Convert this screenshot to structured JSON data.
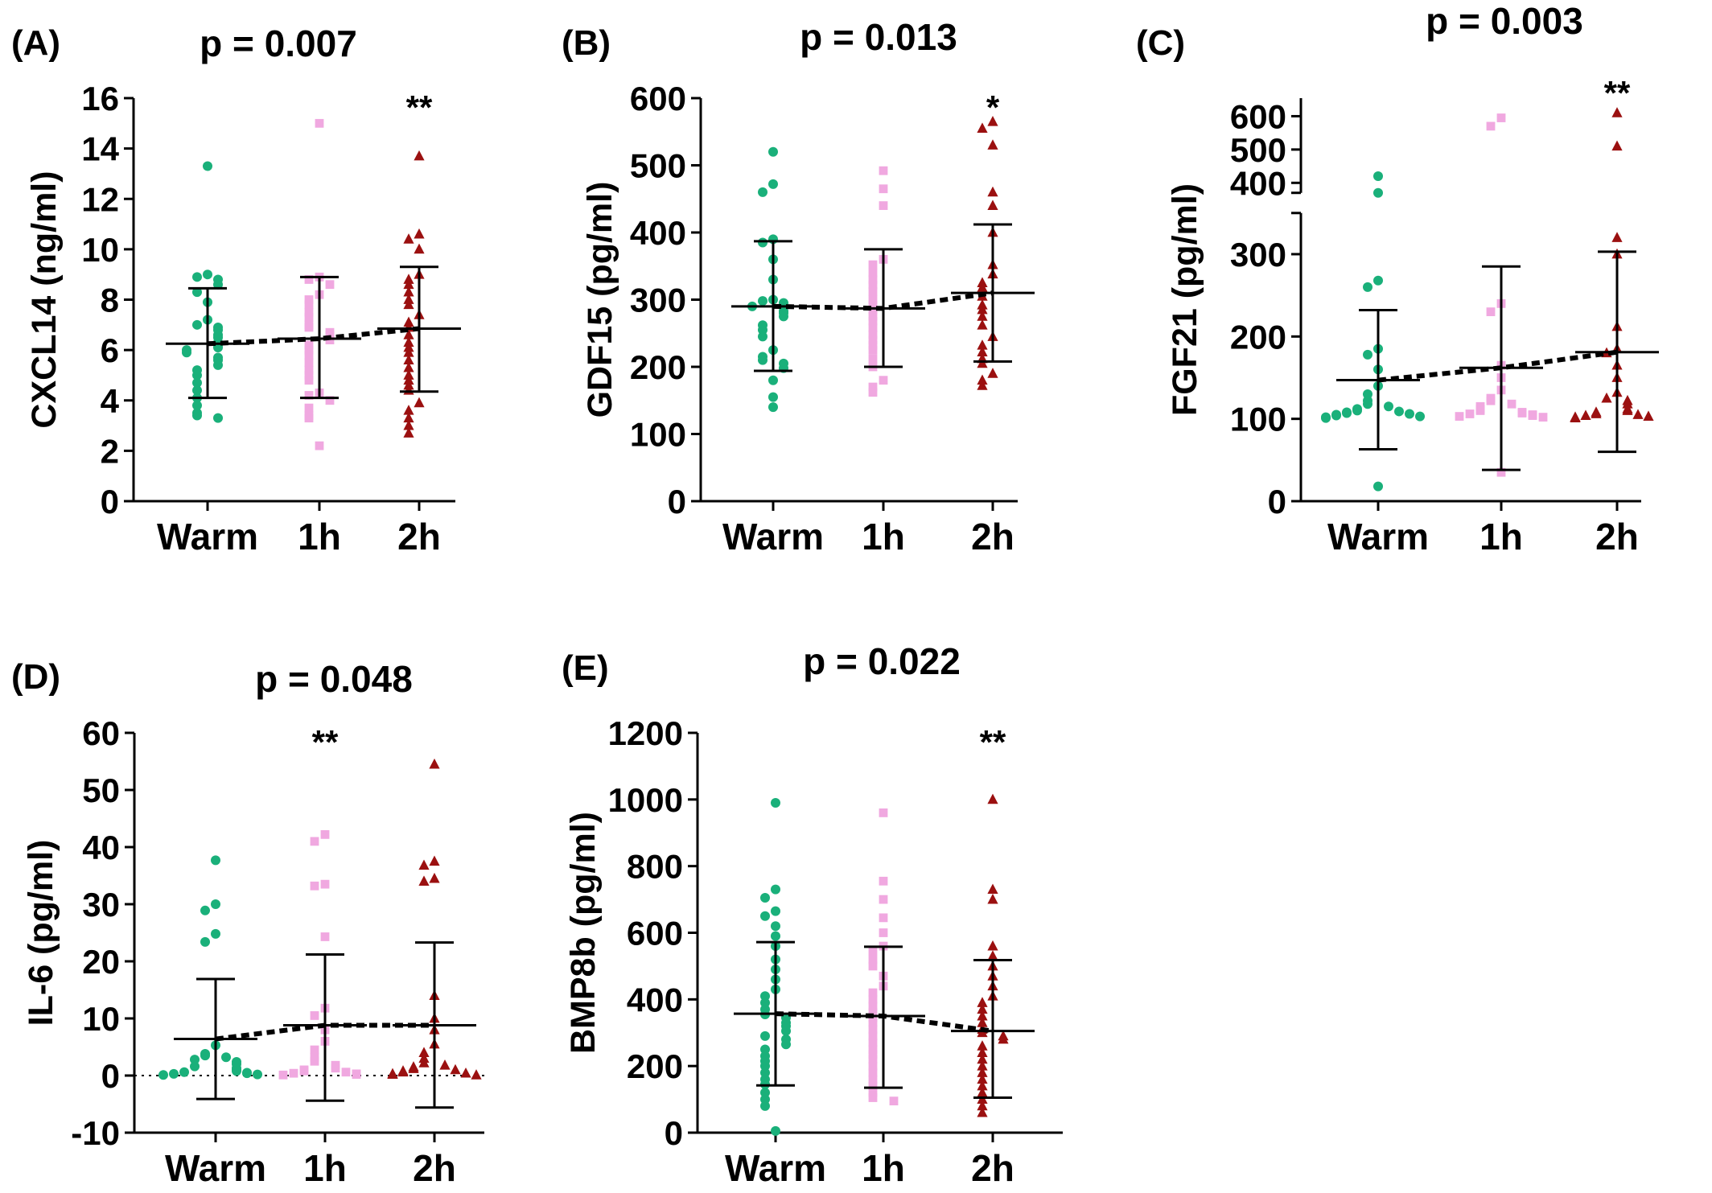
{
  "colors": {
    "Warm": "#1ab07a",
    "1h": "#f0a8e0",
    "2h": "#9b1010",
    "axis": "#000000"
  },
  "chart_data": [
    {
      "panel": "(A)",
      "type": "scatter",
      "p_text": "p = 0.007",
      "ylabel": "CXCL14 (ng/ml)",
      "categories": [
        "Warm",
        "1h",
        "2h"
      ],
      "yticks": [
        0,
        2,
        4,
        6,
        8,
        10,
        12,
        14,
        16
      ],
      "ylim": [
        0,
        16
      ],
      "significance": [
        {
          "category": "2h",
          "label": "**"
        }
      ],
      "means": [
        6.25,
        6.45,
        6.85
      ],
      "sd_upper": [
        8.45,
        8.9,
        9.3
      ],
      "sd_lower": [
        4.1,
        4.1,
        4.35
      ],
      "series": [
        {
          "category": "Warm",
          "marker": "circle",
          "values": [
            13.3,
            9.0,
            8.9,
            8.8,
            8.6,
            8.3,
            7.9,
            7.2,
            7.0,
            6.9,
            6.8,
            6.6,
            6.5,
            6.3,
            6.2,
            6.1,
            6.0,
            5.9,
            5.7,
            5.6,
            5.4,
            5.2,
            5.0,
            4.7,
            4.4,
            4.1,
            3.8,
            3.5,
            3.4,
            3.3
          ]
        },
        {
          "category": "1h",
          "marker": "square",
          "values": [
            15.0,
            8.9,
            8.8,
            8.6,
            8.2,
            8.0,
            7.8,
            7.5,
            7.3,
            7.0,
            6.9,
            6.7,
            6.6,
            6.4,
            6.2,
            6.0,
            5.8,
            5.5,
            5.2,
            5.0,
            4.8,
            4.3,
            4.2,
            4.0,
            3.7,
            3.4,
            3.3,
            2.2
          ]
        },
        {
          "category": "2h",
          "marker": "triangle",
          "values": [
            13.7,
            10.6,
            10.4,
            10.0,
            9.0,
            8.8,
            8.6,
            8.3,
            8.0,
            7.8,
            7.4,
            7.1,
            6.9,
            6.6,
            6.3,
            6.1,
            5.9,
            5.6,
            5.3,
            5.0,
            4.8,
            4.6,
            4.4,
            3.9,
            3.6,
            3.3,
            3.0,
            2.7
          ]
        }
      ]
    },
    {
      "panel": "(B)",
      "type": "scatter",
      "p_text": "p = 0.013",
      "ylabel": "GDF15 (pg/ml)",
      "categories": [
        "Warm",
        "1h",
        "2h"
      ],
      "yticks": [
        0,
        100,
        200,
        300,
        400,
        500,
        600
      ],
      "ylim": [
        0,
        600
      ],
      "significance": [
        {
          "category": "2h",
          "label": "*"
        }
      ],
      "means": [
        290,
        287,
        310
      ],
      "sd_upper": [
        387,
        375,
        412
      ],
      "sd_lower": [
        194,
        200,
        208
      ],
      "series": [
        {
          "category": "Warm",
          "marker": "circle",
          "values": [
            520,
            472,
            460,
            390,
            385,
            360,
            330,
            300,
            298,
            295,
            290,
            283,
            280,
            275,
            262,
            255,
            245,
            225,
            215,
            210,
            205,
            198,
            180,
            155,
            140
          ]
        },
        {
          "category": "1h",
          "marker": "square",
          "values": [
            492,
            465,
            440,
            360,
            352,
            340,
            330,
            322,
            312,
            300,
            292,
            285,
            275,
            268,
            258,
            248,
            240,
            232,
            225,
            212,
            200,
            180,
            170,
            162
          ]
        },
        {
          "category": "2h",
          "marker": "triangle",
          "values": [
            565,
            555,
            530,
            460,
            440,
            400,
            352,
            338,
            325,
            318,
            305,
            292,
            285,
            275,
            262,
            245,
            232,
            222,
            212,
            205,
            190,
            180,
            172
          ]
        }
      ]
    },
    {
      "panel": "(C)",
      "type": "scatter",
      "p_text": "p = 0.003",
      "ylabel": "FGF21 (pg/ml)",
      "categories": [
        "Warm",
        "1h",
        "2h"
      ],
      "yticks": [
        0,
        100,
        200,
        300,
        400,
        500,
        600
      ],
      "ylim": [
        0,
        630
      ],
      "axis_break": [
        350,
        370
      ],
      "significance": [
        {
          "category": "2h",
          "label": "**"
        }
      ],
      "means": [
        147,
        162,
        181
      ],
      "sd_upper": [
        232,
        285,
        303
      ],
      "sd_lower": [
        63,
        38,
        60
      ],
      "series": [
        {
          "category": "Warm",
          "marker": "circle",
          "values": [
            420,
            370,
            268,
            260,
            185,
            178,
            160,
            140,
            130,
            122,
            118,
            115,
            112,
            110,
            109,
            108,
            107,
            106,
            105,
            104,
            103,
            102,
            101,
            18
          ]
        },
        {
          "category": "1h",
          "marker": "square",
          "values": [
            595,
            570,
            240,
            230,
            165,
            150,
            135,
            125,
            122,
            118,
            115,
            112,
            110,
            108,
            107,
            106,
            105,
            104,
            103,
            102,
            35
          ]
        },
        {
          "category": "2h",
          "marker": "triangle",
          "values": [
            610,
            510,
            320,
            300,
            212,
            185,
            180,
            165,
            150,
            132,
            125,
            122,
            118,
            112,
            110,
            108,
            106,
            105,
            104,
            103,
            102,
            101
          ]
        }
      ]
    },
    {
      "panel": "(D)",
      "type": "scatter",
      "p_text": "p = 0.048",
      "ylabel": "IL-6 (pg/ml)",
      "categories": [
        "Warm",
        "1h",
        "2h"
      ],
      "yticks": [
        -10,
        0,
        10,
        20,
        30,
        40,
        50,
        60
      ],
      "ylim": [
        -10,
        60
      ],
      "zero_line": true,
      "significance": [
        {
          "category": "1h",
          "label": "**"
        }
      ],
      "means": [
        6.4,
        8.8,
        8.8
      ],
      "sd_upper": [
        16.9,
        21.2,
        23.3
      ],
      "sd_lower": [
        -4.1,
        -4.4,
        -5.6
      ],
      "series": [
        {
          "category": "Warm",
          "marker": "circle",
          "values": [
            37.7,
            30.0,
            28.9,
            24.8,
            23.4,
            5.3,
            3.8,
            3.5,
            3.2,
            2.8,
            2.4,
            2.0,
            1.6,
            1.3,
            1.0,
            0.8,
            0.6,
            0.5,
            0.4,
            0.3,
            0.2,
            0.1
          ]
        },
        {
          "category": "1h",
          "marker": "square",
          "values": [
            42.2,
            41.0,
            33.5,
            33.2,
            24.3,
            11.8,
            10.5,
            8.0,
            6.0,
            4.5,
            3.2,
            2.5,
            1.8,
            1.3,
            1.0,
            0.8,
            0.6,
            0.4,
            0.3,
            0.2,
            0.1
          ]
        },
        {
          "category": "2h",
          "marker": "triangle",
          "values": [
            54.5,
            37.5,
            36.8,
            34.5,
            34.0,
            14.0,
            10.0,
            8.0,
            5.5,
            4.0,
            3.0,
            2.2,
            1.8,
            1.5,
            1.2,
            1.0,
            0.8,
            0.6,
            0.4,
            0.3,
            0.2,
            0.1
          ]
        }
      ]
    },
    {
      "panel": "(E)",
      "type": "scatter",
      "p_text": "p = 0.022",
      "ylabel": "BMP8b (pg/ml)",
      "categories": [
        "Warm",
        "1h",
        "2h"
      ],
      "yticks": [
        0,
        200,
        400,
        600,
        800,
        1000,
        1200
      ],
      "ylim": [
        0,
        1200
      ],
      "significance": [
        {
          "category": "2h",
          "label": "**"
        }
      ],
      "means": [
        357,
        350,
        305
      ],
      "sd_upper": [
        572,
        558,
        518
      ],
      "sd_lower": [
        142,
        135,
        105
      ],
      "series": [
        {
          "category": "Warm",
          "marker": "circle",
          "values": [
            990,
            730,
            705,
            665,
            650,
            620,
            590,
            560,
            520,
            490,
            460,
            430,
            410,
            390,
            370,
            355,
            345,
            330,
            320,
            305,
            290,
            280,
            265,
            250,
            230,
            215,
            200,
            180,
            160,
            145,
            120,
            100,
            80,
            5
          ]
        },
        {
          "category": "1h",
          "marker": "square",
          "values": [
            960,
            755,
            700,
            645,
            600,
            560,
            545,
            520,
            500,
            470,
            440,
            420,
            400,
            380,
            360,
            345,
            330,
            310,
            290,
            270,
            250,
            235,
            220,
            200,
            180,
            160,
            140,
            120,
            105,
            95
          ]
        },
        {
          "category": "2h",
          "marker": "triangle",
          "values": [
            1000,
            730,
            700,
            560,
            530,
            500,
            470,
            440,
            410,
            390,
            370,
            350,
            330,
            310,
            300,
            290,
            280,
            260,
            240,
            220,
            200,
            180,
            160,
            140,
            120,
            100,
            80,
            60
          ]
        }
      ]
    }
  ]
}
